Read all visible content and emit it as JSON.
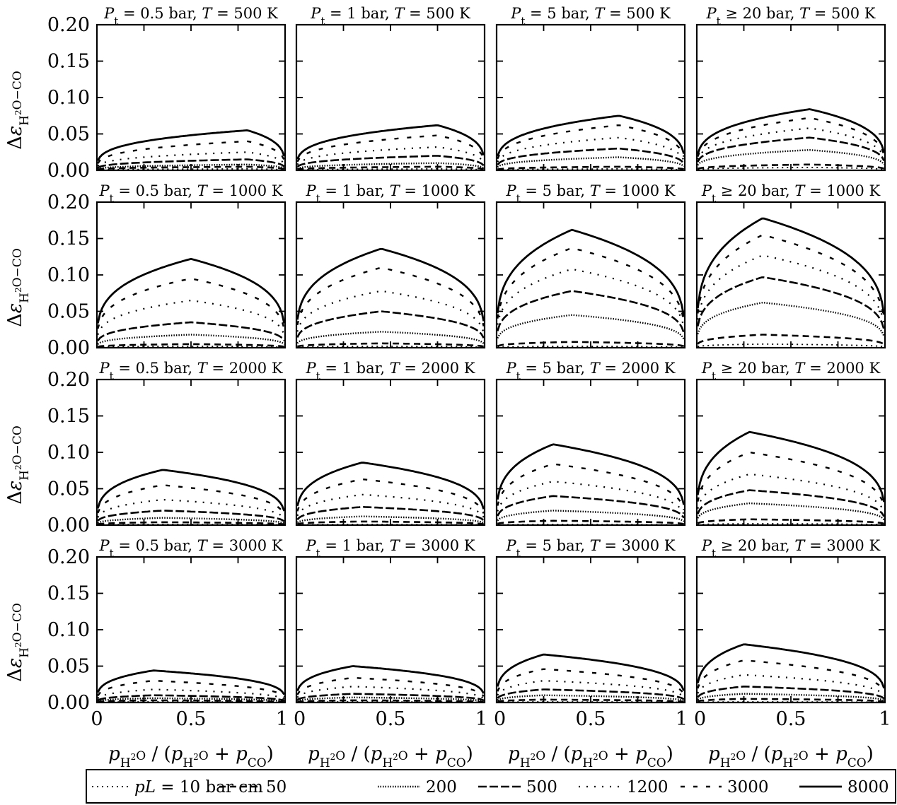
{
  "chart_data": {
    "type": "line",
    "layout": "4x4 grid of subplots",
    "rows_label": "T",
    "cols_label": "P_t",
    "col_titles": [
      "Pt = 0.5 bar",
      "Pt = 1 bar",
      "Pt = 5 bar",
      "Pt ≥ 20 bar"
    ],
    "row_titles": [
      "T = 500 K",
      "T = 1000 K",
      "T = 2000 K",
      "T = 3000 K"
    ],
    "ylabel": "Δε_{H2O−CO}",
    "xlabel": "p_{H2O} / (p_{H2O} + p_{CO})",
    "xlim": [
      0,
      1
    ],
    "ylim": [
      0,
      0.2
    ],
    "xticks": [
      "0",
      "0.5",
      "1"
    ],
    "yticks": [
      "0.00",
      "0.05",
      "0.10",
      "0.15",
      "0.20"
    ],
    "grid": false,
    "legend": {
      "placement": "bottom",
      "entries": [
        {
          "label": "pL = 10 bar cm",
          "style": "dotted"
        },
        {
          "label": "50",
          "style": "dashed"
        },
        {
          "label": "200",
          "style": "densely dotted"
        },
        {
          "label": "500",
          "style": "dense dashed"
        },
        {
          "label": "1200",
          "style": "sparse dotted"
        },
        {
          "label": "3000",
          "style": "sparse dashed"
        },
        {
          "label": "8000",
          "style": "solid"
        }
      ]
    },
    "series_pL": [
      10,
      50,
      200,
      500,
      1200,
      3000,
      8000
    ],
    "peaks_description": "Peak Δε of each pL curve per panel; index [row][col][series]",
    "peak_x": [
      [
        0.8,
        0.75,
        0.65,
        0.6
      ],
      [
        0.5,
        0.45,
        0.4,
        0.35
      ],
      [
        0.35,
        0.35,
        0.3,
        0.28
      ],
      [
        0.3,
        0.3,
        0.25,
        0.25
      ]
    ],
    "peaks": [
      [
        [
          0.002,
          0.005,
          0.008,
          0.015,
          0.025,
          0.04,
          0.055
        ],
        [
          0.002,
          0.005,
          0.01,
          0.02,
          0.032,
          0.048,
          0.062
        ],
        [
          0.002,
          0.005,
          0.018,
          0.03,
          0.045,
          0.062,
          0.075
        ],
        [
          0.004,
          0.008,
          0.028,
          0.045,
          0.058,
          0.072,
          0.084
        ]
      ],
      [
        [
          0.002,
          0.005,
          0.018,
          0.035,
          0.065,
          0.095,
          0.122
        ],
        [
          0.002,
          0.006,
          0.022,
          0.05,
          0.078,
          0.11,
          0.136
        ],
        [
          0.002,
          0.008,
          0.045,
          0.078,
          0.108,
          0.137,
          0.162
        ],
        [
          0.005,
          0.018,
          0.062,
          0.097,
          0.127,
          0.155,
          0.178
        ]
      ],
      [
        [
          0.001,
          0.004,
          0.01,
          0.02,
          0.035,
          0.055,
          0.076
        ],
        [
          0.001,
          0.005,
          0.012,
          0.025,
          0.042,
          0.063,
          0.086
        ],
        [
          0.001,
          0.006,
          0.02,
          0.04,
          0.06,
          0.084,
          0.111
        ],
        [
          0.002,
          0.008,
          0.03,
          0.048,
          0.07,
          0.1,
          0.128
        ]
      ],
      [
        [
          0.001,
          0.003,
          0.006,
          0.01,
          0.018,
          0.03,
          0.044
        ],
        [
          0.001,
          0.003,
          0.007,
          0.012,
          0.022,
          0.034,
          0.05
        ],
        [
          0.001,
          0.004,
          0.01,
          0.018,
          0.03,
          0.046,
          0.066
        ],
        [
          0.001,
          0.005,
          0.012,
          0.022,
          0.038,
          0.058,
          0.08
        ]
      ]
    ]
  }
}
